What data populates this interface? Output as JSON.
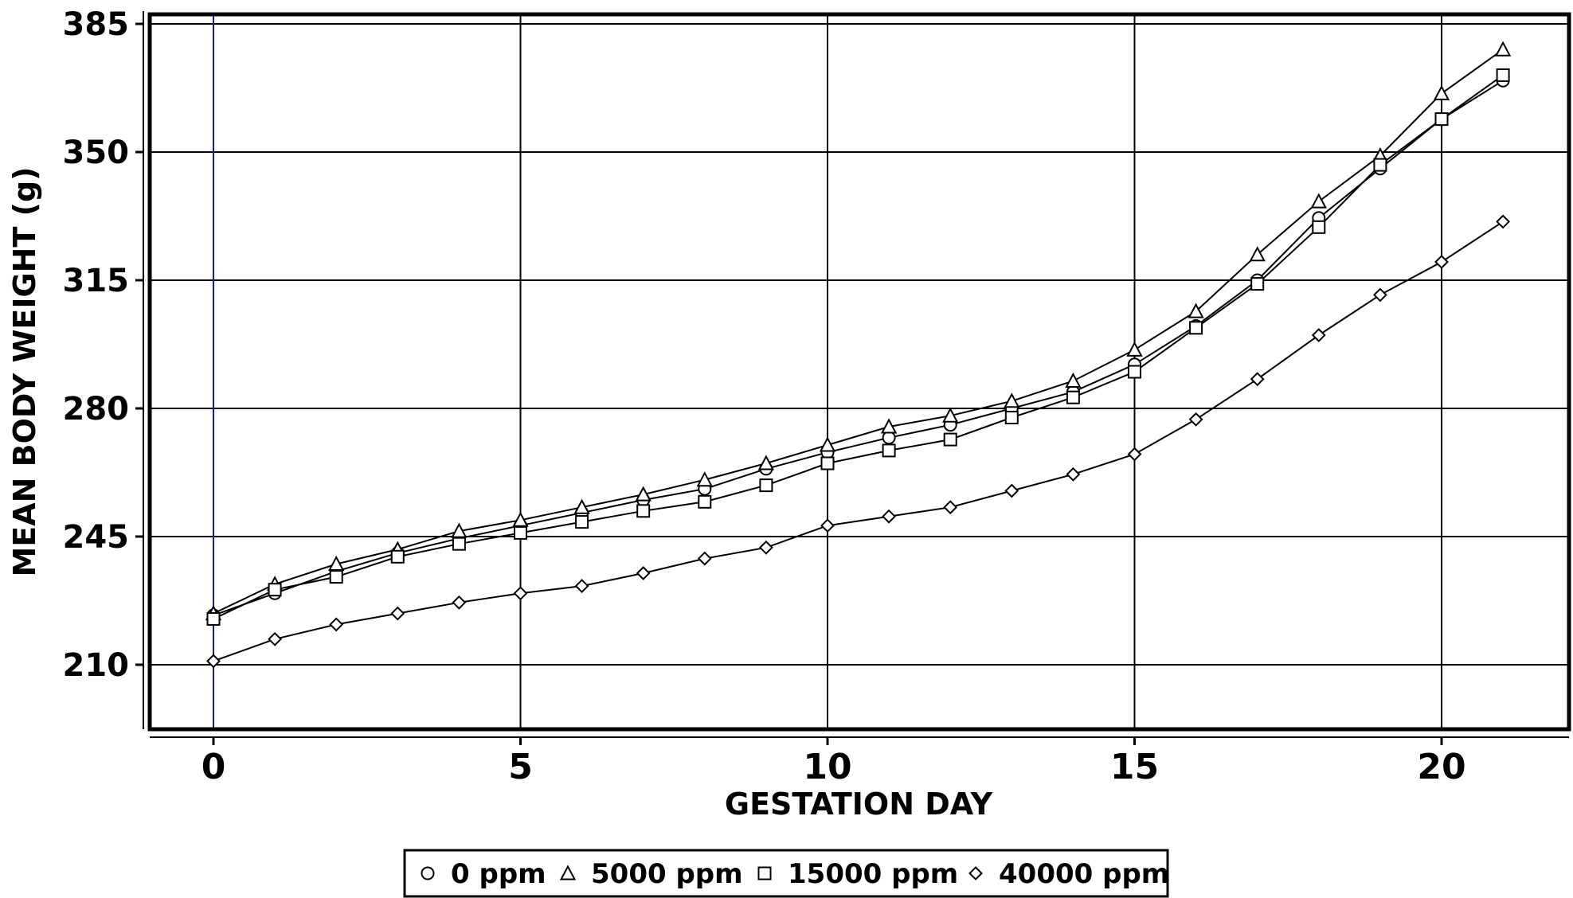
{
  "chart_data": {
    "type": "line",
    "xlabel": "GESTATION DAY",
    "ylabel": "MEAN BODY WEIGHT (g)",
    "xlim": [
      -1,
      22
    ],
    "ylim": [
      192.5,
      385
    ],
    "xticks": [
      "0",
      "5",
      "10",
      "15",
      "20"
    ],
    "xtick_values": [
      0,
      5,
      10,
      15,
      20
    ],
    "yticks": [
      "210",
      "245",
      "280",
      "315",
      "350",
      "385"
    ],
    "ytick_values": [
      210,
      245,
      280,
      315,
      350,
      385
    ],
    "grid": true,
    "legend_position": "bottom",
    "x": [
      0,
      1,
      2,
      3,
      4,
      5,
      6,
      7,
      8,
      9,
      10,
      11,
      12,
      13,
      14,
      15,
      16,
      17,
      18,
      19,
      20,
      21
    ],
    "series": [
      {
        "name": "0 ppm",
        "marker": "circle",
        "values": [
          223.5,
          229.5,
          235.5,
          240.5,
          244.5,
          248,
          251.5,
          255,
          258,
          263.5,
          268,
          272,
          275.5,
          280,
          284.5,
          292,
          302.5,
          315,
          332,
          345.5,
          359,
          369.5
        ]
      },
      {
        "name": "5000 ppm",
        "marker": "triangle",
        "values": [
          224,
          232,
          237.5,
          241.5,
          246.5,
          249.5,
          253,
          256.5,
          260.5,
          265,
          270,
          275,
          278,
          282,
          287.5,
          296,
          306.5,
          322,
          336.5,
          349,
          366,
          378
        ]
      },
      {
        "name": "15000 ppm",
        "marker": "square",
        "values": [
          222.5,
          230.5,
          234,
          239.5,
          243,
          246,
          249,
          252,
          254.5,
          259,
          265,
          268.5,
          271.5,
          277.5,
          283,
          290,
          302,
          314,
          329.5,
          346.5,
          359,
          371
        ]
      },
      {
        "name": "40000 ppm",
        "marker": "diamond",
        "values": [
          211,
          217,
          221,
          224,
          227,
          229.5,
          231.5,
          235,
          239,
          242,
          248,
          250.5,
          253,
          257.5,
          262,
          267.5,
          277,
          288,
          300,
          311,
          320,
          331
        ]
      }
    ]
  }
}
